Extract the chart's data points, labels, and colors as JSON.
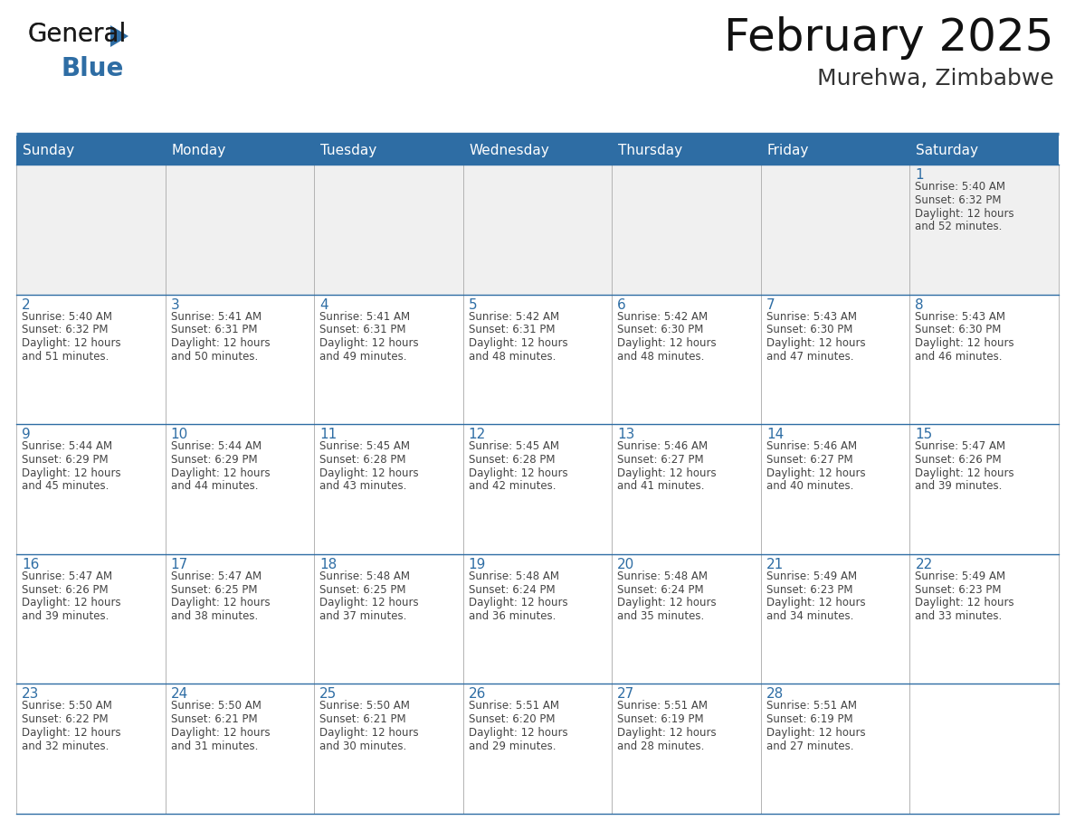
{
  "title": "February 2025",
  "subtitle": "Murehwa, Zimbabwe",
  "header_bg": "#2E6DA4",
  "header_text_color": "#FFFFFF",
  "cell_bg_gray": "#F0F0F0",
  "cell_bg_white": "#FFFFFF",
  "day_number_color": "#2E6DA4",
  "text_color": "#444444",
  "border_color": "#AAAAAA",
  "blue_line_color": "#2E6DA4",
  "days_of_week": [
    "Sunday",
    "Monday",
    "Tuesday",
    "Wednesday",
    "Thursday",
    "Friday",
    "Saturday"
  ],
  "calendar_data": [
    [
      null,
      null,
      null,
      null,
      null,
      null,
      {
        "day": 1,
        "sunrise": "5:40 AM",
        "sunset": "6:32 PM",
        "daylight_hours": 12,
        "daylight_minutes": 52
      }
    ],
    [
      {
        "day": 2,
        "sunrise": "5:40 AM",
        "sunset": "6:32 PM",
        "daylight_hours": 12,
        "daylight_minutes": 51
      },
      {
        "day": 3,
        "sunrise": "5:41 AM",
        "sunset": "6:31 PM",
        "daylight_hours": 12,
        "daylight_minutes": 50
      },
      {
        "day": 4,
        "sunrise": "5:41 AM",
        "sunset": "6:31 PM",
        "daylight_hours": 12,
        "daylight_minutes": 49
      },
      {
        "day": 5,
        "sunrise": "5:42 AM",
        "sunset": "6:31 PM",
        "daylight_hours": 12,
        "daylight_minutes": 48
      },
      {
        "day": 6,
        "sunrise": "5:42 AM",
        "sunset": "6:30 PM",
        "daylight_hours": 12,
        "daylight_minutes": 48
      },
      {
        "day": 7,
        "sunrise": "5:43 AM",
        "sunset": "6:30 PM",
        "daylight_hours": 12,
        "daylight_minutes": 47
      },
      {
        "day": 8,
        "sunrise": "5:43 AM",
        "sunset": "6:30 PM",
        "daylight_hours": 12,
        "daylight_minutes": 46
      }
    ],
    [
      {
        "day": 9,
        "sunrise": "5:44 AM",
        "sunset": "6:29 PM",
        "daylight_hours": 12,
        "daylight_minutes": 45
      },
      {
        "day": 10,
        "sunrise": "5:44 AM",
        "sunset": "6:29 PM",
        "daylight_hours": 12,
        "daylight_minutes": 44
      },
      {
        "day": 11,
        "sunrise": "5:45 AM",
        "sunset": "6:28 PM",
        "daylight_hours": 12,
        "daylight_minutes": 43
      },
      {
        "day": 12,
        "sunrise": "5:45 AM",
        "sunset": "6:28 PM",
        "daylight_hours": 12,
        "daylight_minutes": 42
      },
      {
        "day": 13,
        "sunrise": "5:46 AM",
        "sunset": "6:27 PM",
        "daylight_hours": 12,
        "daylight_minutes": 41
      },
      {
        "day": 14,
        "sunrise": "5:46 AM",
        "sunset": "6:27 PM",
        "daylight_hours": 12,
        "daylight_minutes": 40
      },
      {
        "day": 15,
        "sunrise": "5:47 AM",
        "sunset": "6:26 PM",
        "daylight_hours": 12,
        "daylight_minutes": 39
      }
    ],
    [
      {
        "day": 16,
        "sunrise": "5:47 AM",
        "sunset": "6:26 PM",
        "daylight_hours": 12,
        "daylight_minutes": 39
      },
      {
        "day": 17,
        "sunrise": "5:47 AM",
        "sunset": "6:25 PM",
        "daylight_hours": 12,
        "daylight_minutes": 38
      },
      {
        "day": 18,
        "sunrise": "5:48 AM",
        "sunset": "6:25 PM",
        "daylight_hours": 12,
        "daylight_minutes": 37
      },
      {
        "day": 19,
        "sunrise": "5:48 AM",
        "sunset": "6:24 PM",
        "daylight_hours": 12,
        "daylight_minutes": 36
      },
      {
        "day": 20,
        "sunrise": "5:48 AM",
        "sunset": "6:24 PM",
        "daylight_hours": 12,
        "daylight_minutes": 35
      },
      {
        "day": 21,
        "sunrise": "5:49 AM",
        "sunset": "6:23 PM",
        "daylight_hours": 12,
        "daylight_minutes": 34
      },
      {
        "day": 22,
        "sunrise": "5:49 AM",
        "sunset": "6:23 PM",
        "daylight_hours": 12,
        "daylight_minutes": 33
      }
    ],
    [
      {
        "day": 23,
        "sunrise": "5:50 AM",
        "sunset": "6:22 PM",
        "daylight_hours": 12,
        "daylight_minutes": 32
      },
      {
        "day": 24,
        "sunrise": "5:50 AM",
        "sunset": "6:21 PM",
        "daylight_hours": 12,
        "daylight_minutes": 31
      },
      {
        "day": 25,
        "sunrise": "5:50 AM",
        "sunset": "6:21 PM",
        "daylight_hours": 12,
        "daylight_minutes": 30
      },
      {
        "day": 26,
        "sunrise": "5:51 AM",
        "sunset": "6:20 PM",
        "daylight_hours": 12,
        "daylight_minutes": 29
      },
      {
        "day": 27,
        "sunrise": "5:51 AM",
        "sunset": "6:19 PM",
        "daylight_hours": 12,
        "daylight_minutes": 28
      },
      {
        "day": 28,
        "sunrise": "5:51 AM",
        "sunset": "6:19 PM",
        "daylight_hours": 12,
        "daylight_minutes": 27
      },
      null
    ]
  ],
  "logo_color_general": "#1a1a1a",
  "logo_color_blue": "#2E6DA4",
  "title_fontsize": 36,
  "subtitle_fontsize": 18,
  "dow_fontsize": 11,
  "day_num_fontsize": 11,
  "cell_text_fontsize": 8.5
}
